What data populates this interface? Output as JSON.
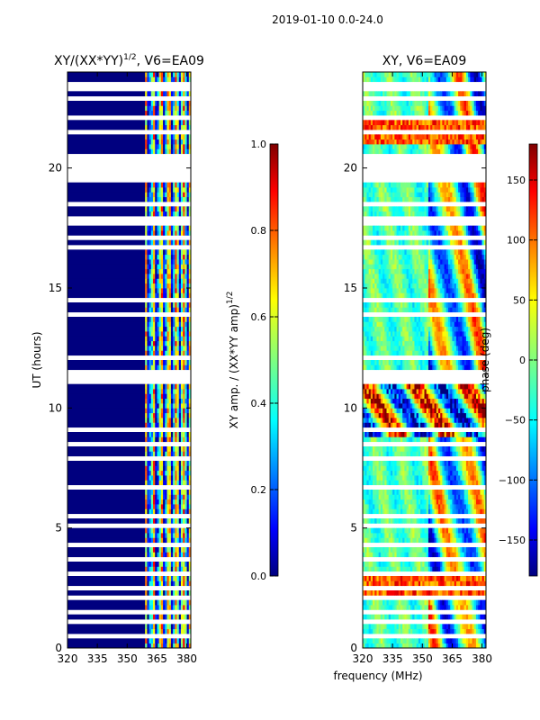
{
  "figure_title": "2019-01-10 0.0-24.0",
  "chart_data": [
    {
      "type": "heatmap",
      "title_prefix": "XY/(XX*YY)",
      "title_exponent": "1/2",
      "title_suffix": ", V6=EA09",
      "xlabel": "",
      "ylabel": "UT (hours)",
      "x_range": [
        320,
        382
      ],
      "y_range": [
        0,
        24
      ],
      "x_ticks": [
        320,
        335,
        350,
        365,
        380
      ],
      "y_ticks": [
        0,
        5,
        10,
        15,
        20
      ],
      "active_band_mhz": [
        359,
        382
      ],
      "colorbar": {
        "label": "XY amp. / (XX*YY amp)",
        "label_exponent": "1/2",
        "range": [
          0.0,
          1.0
        ],
        "ticks": [
          "0.0",
          "0.2",
          "0.4",
          "0.6",
          "0.8",
          "1.0"
        ],
        "colormap": "jet"
      }
    },
    {
      "type": "heatmap",
      "title": "XY, V6=EA09",
      "xlabel": "frequency (MHz)",
      "ylabel": "",
      "x_range": [
        320,
        382
      ],
      "y_range": [
        0,
        24
      ],
      "x_ticks": [
        320,
        335,
        350,
        365,
        380
      ],
      "y_ticks": [
        0,
        5,
        10,
        15,
        20
      ],
      "colorbar": {
        "label": "phase (deg)",
        "range": [
          -180,
          180
        ],
        "ticks": [
          "−150",
          "−100",
          "−50",
          "0",
          "50",
          "100",
          "150"
        ],
        "colormap": "jet"
      }
    }
  ],
  "gaps_ut_hours": [
    [
      23.3,
      23.5
    ],
    [
      22.8,
      22.95
    ],
    [
      22.0,
      22.25
    ],
    [
      21.5,
      21.65
    ],
    [
      20.5,
      19.4
    ],
    [
      18.45,
      18.6
    ],
    [
      17.7,
      17.9
    ],
    [
      17.1,
      17.2
    ],
    [
      16.6,
      16.75
    ],
    [
      15.9,
      16.05
    ],
    [
      14.5,
      14.6
    ],
    [
      13.9,
      14.0
    ],
    [
      12.1,
      12.25
    ],
    [
      11.6,
      11.05
    ],
    [
      9.0,
      9.15
    ],
    [
      8.5,
      8.6
    ],
    [
      7.9,
      8.05
    ],
    [
      7.3,
      7.45
    ],
    [
      6.6,
      6.75
    ],
    [
      5.5,
      5.6
    ],
    [
      5.0,
      5.15
    ],
    [
      4.2,
      4.35
    ],
    [
      3.6,
      3.7
    ],
    [
      3.1,
      3.25
    ],
    [
      2.5,
      2.6
    ],
    [
      2.0,
      2.1
    ],
    [
      1.5,
      1.6
    ],
    [
      1.0,
      1.12
    ],
    [
      0.5,
      0.6
    ]
  ]
}
